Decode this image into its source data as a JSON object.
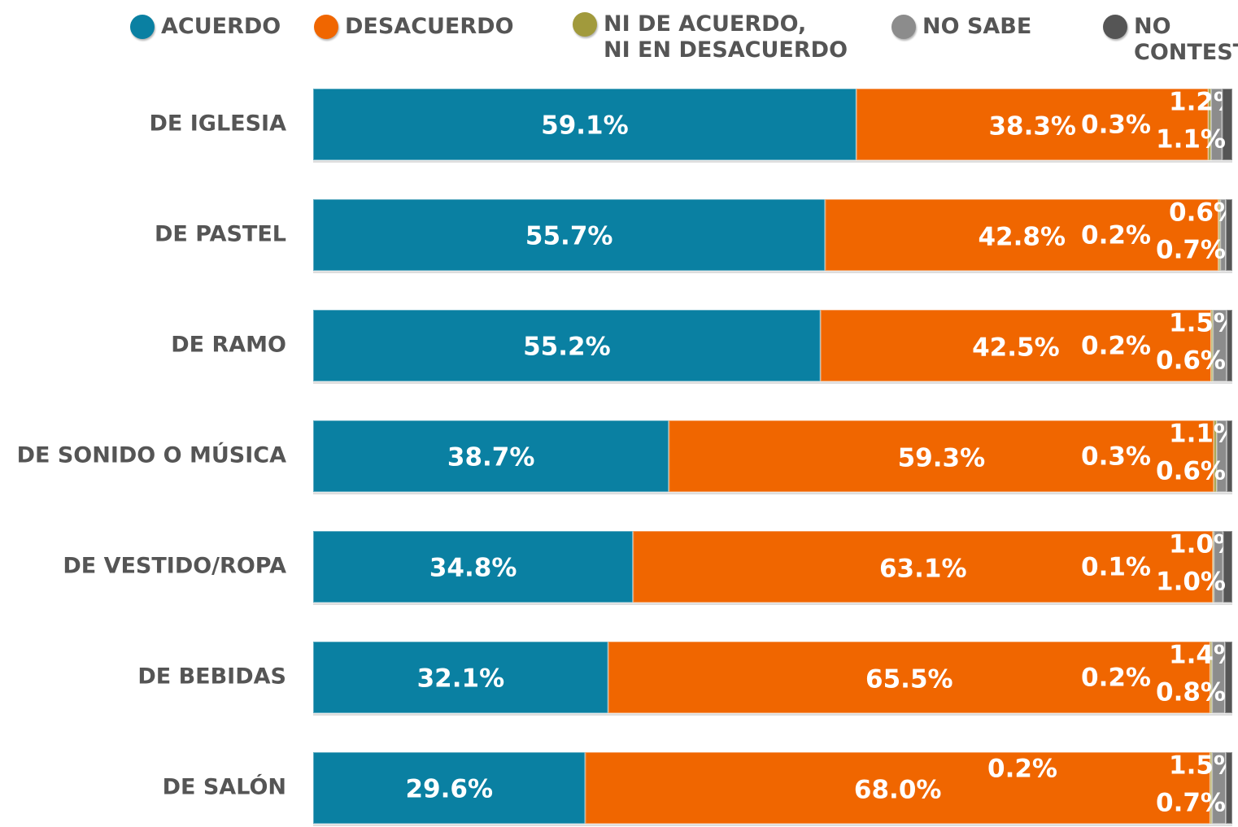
{
  "chart_data": {
    "type": "stacked-bar-horizontal",
    "categories": [
      "DE IGLESIA",
      "DE PASTEL",
      "DE RAMO",
      "DE SONIDO O MÚSICA",
      "DE VESTIDO/ROPA",
      "DE BEBIDAS",
      "DE SALÓN"
    ],
    "xlim": [
      0,
      100
    ],
    "series": [
      {
        "name": "ACUERDO",
        "color": "#0a80a2",
        "values": [
          59.1,
          55.7,
          55.2,
          38.7,
          34.8,
          32.1,
          29.6
        ],
        "value_labels": [
          "59.1%",
          "55.7%",
          "55.2%",
          "38.7%",
          "34.8%",
          "32.1%",
          "29.6%"
        ]
      },
      {
        "name": "DESACUERDO",
        "color": "#f06600",
        "values": [
          38.3,
          42.8,
          42.5,
          59.3,
          63.1,
          65.5,
          68.0
        ],
        "value_labels": [
          "38.3%",
          "42.8%",
          "42.5%",
          "59.3%",
          "63.1%",
          "65.5%",
          "68.0%"
        ]
      },
      {
        "name": "NI DE ACUERDO,\nNI EN DESACUERDO",
        "color": "#a19a3c",
        "values": [
          0.3,
          0.2,
          0.2,
          0.3,
          0.1,
          0.2,
          0.2
        ],
        "value_labels": [
          "0.3%",
          "0.2%",
          "0.2%",
          "0.3%",
          "0.1%",
          "0.2%",
          "0.2%"
        ]
      },
      {
        "name": "NO SABE",
        "color": "#8c8c8c",
        "values": [
          1.2,
          0.6,
          1.5,
          1.1,
          1.0,
          1.4,
          1.5
        ],
        "value_labels": [
          "1.2%",
          "0.6%",
          "1.5%",
          "1.1%",
          "1.0%",
          "1.4%",
          "1.5%"
        ]
      },
      {
        "name": "NO CONTESTÓ",
        "color": "#555555",
        "values": [
          1.1,
          0.7,
          0.6,
          0.6,
          1.0,
          0.8,
          0.7
        ],
        "value_labels": [
          "1.1%",
          "0.7%",
          "0.6%",
          "0.6%",
          "1.0%",
          "0.8%",
          "0.7%"
        ]
      }
    ]
  }
}
